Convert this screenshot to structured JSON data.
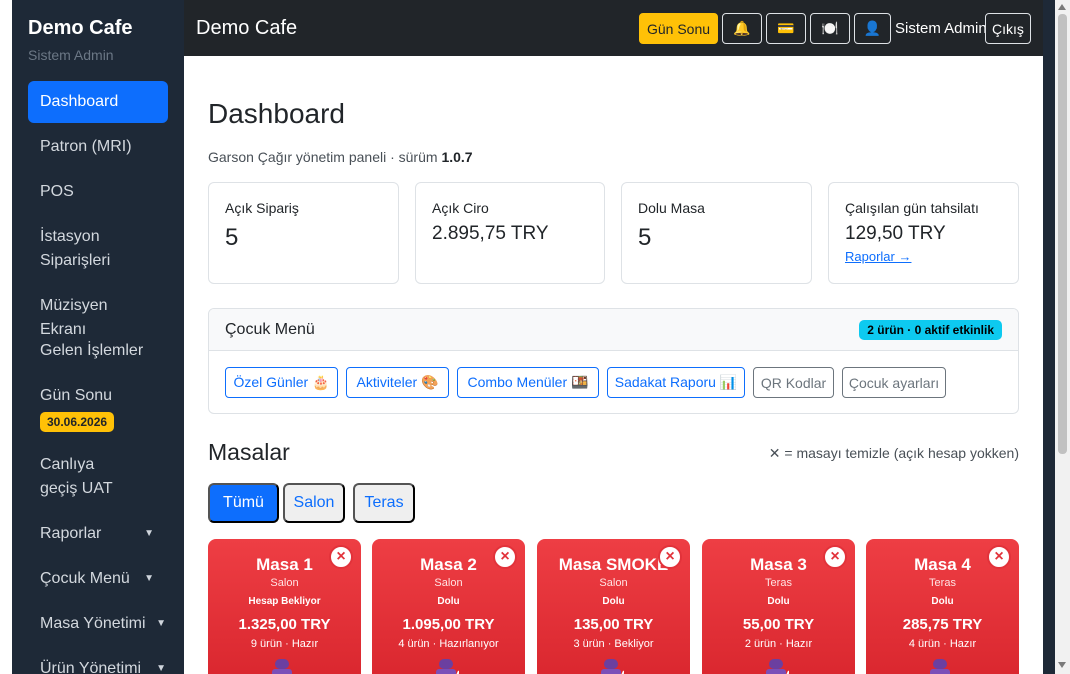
{
  "sidebar": {
    "brand": "Demo Cafe",
    "user": "Sistem Admin",
    "items": [
      {
        "label": "Dashboard"
      },
      {
        "label": "Patron (MRI)"
      },
      {
        "label": "POS"
      },
      {
        "label": "İstasyon Siparişleri"
      },
      {
        "label": "Müzisyen Ekranı"
      },
      {
        "label": "Gelen İşlemler"
      },
      {
        "label": "Gün Sonu",
        "badge": "30.06.2026"
      },
      {
        "label": "Canlıya geçiş UAT"
      },
      {
        "label": "Raporlar"
      },
      {
        "label": "Çocuk Menü"
      },
      {
        "label": "Masa Yönetimi"
      },
      {
        "label": "Ürün Yönetimi"
      }
    ]
  },
  "topbar": {
    "title": "Demo Cafe",
    "gun_sonu": "Gün Sonu",
    "bell": "🔔",
    "card": "💳",
    "plate": "🍽️",
    "person": "👤",
    "user": "Sistem Admin",
    "logout": "Çıkış"
  },
  "main": {
    "title": "Dashboard",
    "subtitle_prefix": "Garson Çağır yönetim paneli · sürüm ",
    "version": "1.0.7",
    "stats": [
      {
        "label": "Açık Sipariş",
        "value": "5"
      },
      {
        "label": "Açık Ciro",
        "value": "2.895,75 TRY"
      },
      {
        "label": "Dolu Masa",
        "value": "5"
      },
      {
        "label": "Çalışılan gün tahsilatı",
        "value": "129,50 TRY",
        "link": "Raporlar →"
      }
    ],
    "cocuk": {
      "title": "Çocuk Menü",
      "badge": "2 ürün · 0 aktif etkinlik",
      "buttons": [
        "Özel Günler 🎂",
        "Aktiviteler 🎨",
        "Combo Menüler 🍱",
        "Sadakat Raporu 📊",
        "QR Kodlar",
        "Çocuk ayarları"
      ]
    },
    "masalar": {
      "title": "Masalar",
      "hint": "✕ = masayı temizle (açık hesap yokken)",
      "tabs": [
        "Tümü",
        "Salon",
        "Teras"
      ],
      "cards": [
        {
          "name": "Masa 1",
          "area": "Salon",
          "status": "Hesap Bekliyor",
          "amount": "1.325,00 TRY",
          "meta": "9 ürün · Hazır",
          "x": "×"
        },
        {
          "name": "Masa 2",
          "area": "Salon",
          "status": "Dolu",
          "amount": "1.095,00 TRY",
          "meta": "4 ürün · Hazırlanıyor",
          "x": "×"
        },
        {
          "name": "Masa SMOKE",
          "area": "Salon",
          "status": "Dolu",
          "amount": "135,00 TRY",
          "meta": "3 ürün · Bekliyor",
          "x": "×"
        },
        {
          "name": "Masa 3",
          "area": "Teras",
          "status": "Dolu",
          "amount": "55,00 TRY",
          "meta": "2 ürün · Hazır",
          "x": "×"
        },
        {
          "name": "Masa 4",
          "area": "Teras",
          "status": "Dolu",
          "amount": "285,75 TRY",
          "meta": "4 ürün · Hazır",
          "x": "×"
        }
      ]
    }
  },
  "colors": {
    "accent": "#0d6efd",
    "warning": "#ffc107",
    "info": "#0dcaf0",
    "table_busy": "#e2323a",
    "sidebar": "#1e2937"
  }
}
